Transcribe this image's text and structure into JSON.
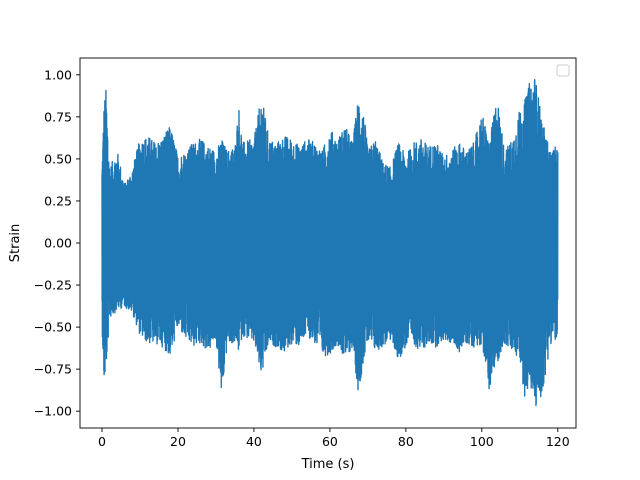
{
  "chart_data": {
    "type": "line",
    "title": "",
    "xlabel": "Time (s)",
    "ylabel": "Strain",
    "xlim": [
      -5.8,
      124.8
    ],
    "ylim": [
      -1.1,
      1.1
    ],
    "xticks": [
      0,
      20,
      40,
      60,
      80,
      100,
      120
    ],
    "yticks": [
      -1.0,
      -0.75,
      -0.5,
      -0.25,
      0.0,
      0.25,
      0.5,
      0.75,
      1.0
    ],
    "xtick_labels": [
      "0",
      "20",
      "40",
      "60",
      "80",
      "100",
      "120"
    ],
    "ytick_labels": [
      "−1.00",
      "−0.75",
      "−0.50",
      "−0.25",
      "0.00",
      "0.25",
      "0.50",
      "0.75",
      "1.00"
    ],
    "grid": false,
    "legend": {
      "placement": "top-right",
      "entries": []
    },
    "series": [
      {
        "color": "#1f77b4",
        "description_kind": "dense noise signal, envelope samples",
        "x": [
          0,
          0.5,
          1,
          2,
          4,
          6,
          8,
          10,
          12,
          14,
          16,
          18,
          20,
          22,
          24,
          26,
          28,
          30,
          31.5,
          33,
          35,
          36,
          37,
          40,
          42,
          44,
          46,
          48,
          50,
          52,
          54,
          56,
          58,
          60,
          62,
          64,
          66,
          67.5,
          69,
          70,
          72,
          74,
          76,
          78,
          80,
          82,
          84,
          86,
          88,
          90,
          92,
          94,
          96,
          98,
          100,
          102,
          104,
          106,
          108,
          110,
          111.5,
          112.5,
          114,
          116,
          118,
          120
        ],
        "upper": [
          0.48,
          0.82,
          0.93,
          0.45,
          0.55,
          0.35,
          0.45,
          0.62,
          0.64,
          0.6,
          0.63,
          0.7,
          0.52,
          0.55,
          0.6,
          0.62,
          0.58,
          0.55,
          0.62,
          0.55,
          0.58,
          0.82,
          0.6,
          0.62,
          0.88,
          0.62,
          0.6,
          0.64,
          0.62,
          0.58,
          0.62,
          0.6,
          0.55,
          0.68,
          0.62,
          0.7,
          0.6,
          0.88,
          0.76,
          0.55,
          0.62,
          0.48,
          0.45,
          0.6,
          0.52,
          0.6,
          0.62,
          0.58,
          0.6,
          0.52,
          0.55,
          0.6,
          0.55,
          0.6,
          0.78,
          0.6,
          0.88,
          0.55,
          0.62,
          0.8,
          0.86,
          0.95,
          1.0,
          0.72,
          0.55,
          0.58
        ],
        "lower": [
          -0.5,
          -0.84,
          -0.78,
          -0.45,
          -0.4,
          -0.38,
          -0.42,
          -0.55,
          -0.6,
          -0.6,
          -0.62,
          -0.68,
          -0.5,
          -0.58,
          -0.62,
          -0.6,
          -0.65,
          -0.58,
          -0.93,
          -0.6,
          -0.6,
          -0.65,
          -0.55,
          -0.6,
          -0.8,
          -0.6,
          -0.62,
          -0.66,
          -0.6,
          -0.62,
          -0.55,
          -0.6,
          -0.68,
          -0.66,
          -0.6,
          -0.7,
          -0.62,
          -0.9,
          -0.68,
          -0.6,
          -0.65,
          -0.62,
          -0.58,
          -0.7,
          -0.62,
          -0.6,
          -0.65,
          -0.6,
          -0.62,
          -0.58,
          -0.6,
          -0.65,
          -0.6,
          -0.62,
          -0.6,
          -0.88,
          -0.72,
          -0.6,
          -0.66,
          -0.7,
          -0.95,
          -0.82,
          -1.0,
          -0.9,
          -0.6,
          -0.58
        ]
      }
    ]
  }
}
